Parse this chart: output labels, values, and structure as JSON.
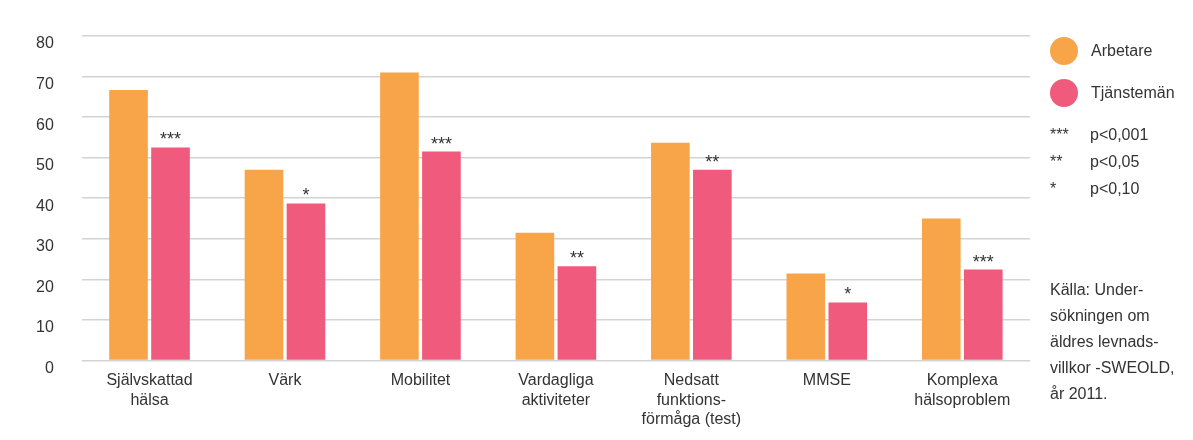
{
  "chart_data": {
    "type": "bar",
    "categories": [
      "Självskattad hälsa",
      "Värk",
      "Mobilitet",
      "Vardagliga aktiviteter",
      "Nedsatt funktions-förmåga (test)",
      "MMSE",
      "Komplexa hälsoproblem"
    ],
    "series": [
      {
        "name": "Arbetare",
        "color": "#f8a54a",
        "values": [
          66.7,
          47,
          71,
          31.5,
          53.7,
          21.4,
          35
        ]
      },
      {
        "name": "Tjänstemän",
        "color": "#ef5a7d",
        "values": [
          52.5,
          38.7,
          51.5,
          23.2,
          47,
          14.3,
          22.4
        ]
      }
    ],
    "ylim": [
      0,
      80
    ],
    "yticks": [
      0,
      10,
      20,
      30,
      40,
      50,
      60,
      70,
      80
    ],
    "grid": "y",
    "legend": "top right",
    "annotations": [
      {
        "text": "***",
        "x": "Självskattad hälsa",
        "y": 52.5
      },
      {
        "text": "*",
        "x": "Värk",
        "y": 38.7
      },
      {
        "text": "***",
        "x": "Mobilitet",
        "y": 51.5
      },
      {
        "text": "**",
        "x": "Vardagliga aktiviteter",
        "y": 23.2
      },
      {
        "text": "**",
        "x": "Nedsatt funktions-förmåga (test)",
        "y": 47
      },
      {
        "text": "*",
        "x": "MMSE",
        "y": 14.3
      },
      {
        "text": "***",
        "x": "Komplexa hälsoproblem",
        "y": 22.4
      },
      "*** p<0,001",
      "** p<0,05",
      "* p<0,10",
      "Källa: Under-sökningen om äldres levnads-villkor -SWEOLD, år 2011."
    ]
  }
}
